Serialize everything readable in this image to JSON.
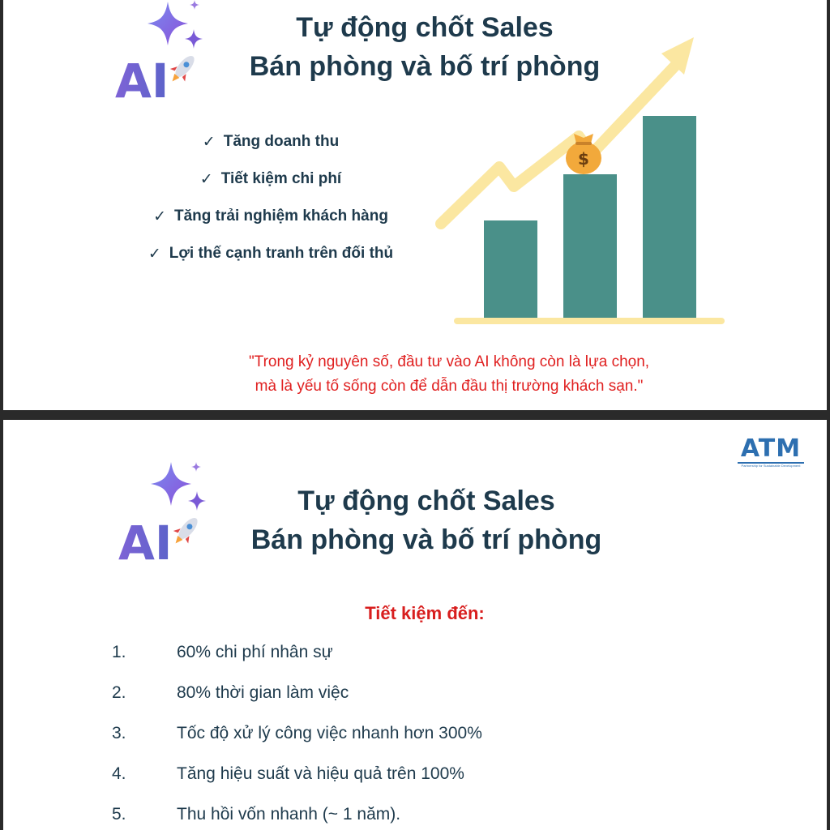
{
  "slide1": {
    "title_line1": "Tự động chốt Sales",
    "title_line2": "Bán phòng và bố trí phòng",
    "logo_text": "AI",
    "benefits": [
      "Tăng doanh thu",
      "Tiết kiệm chi phí",
      "Tăng trải nghiệm khách hàng",
      "Lợi thế cạnh tranh trên đối thủ"
    ],
    "check_symbol": "✓",
    "quote_line1": "\"Trong kỷ nguyên số, đầu tư vào AI không còn là lựa chọn,",
    "quote_line2": "mà là yếu tố sống còn để dẫn đầu thị trường khách sạn.\"",
    "chart_data": {
      "type": "bar",
      "categories": [
        "",
        "",
        ""
      ],
      "values": [
        40,
        59,
        83
      ],
      "ylim": [
        0,
        100
      ],
      "grid": false,
      "trend_arrow": true,
      "money_bag_on_bar": 2,
      "money_bag_symbol": "$",
      "colors": {
        "bar": "#4a9089",
        "arrow": "#fbe7a1",
        "baseline": "#fbe7a1",
        "bag": "#f2a93b"
      }
    }
  },
  "slide2": {
    "title_line1": "Tự động chốt Sales",
    "title_line2": "Bán phòng và bố trí phòng",
    "logo_text": "AI",
    "brand": "ATM",
    "brand_tagline": "Partnership for Sustainable Development",
    "subheading": "Tiết kiệm đến:",
    "items": [
      {
        "num": "1.",
        "text": "60% chi phí nhân sự"
      },
      {
        "num": "2.",
        "text": "80% thời gian làm việc"
      },
      {
        "num": "3.",
        "text": "Tốc độ xử lý công việc nhanh hơn 300%"
      },
      {
        "num": "4.",
        "text": "Tăng hiệu suất và hiệu quả trên 100%"
      },
      {
        "num": "5.",
        "text": "Thu hồi vốn nhanh (~ 1 năm)."
      }
    ]
  },
  "colors": {
    "title": "#1e3a4c",
    "accent_red": "#e02020",
    "brand_blue": "#2d6fb0"
  }
}
